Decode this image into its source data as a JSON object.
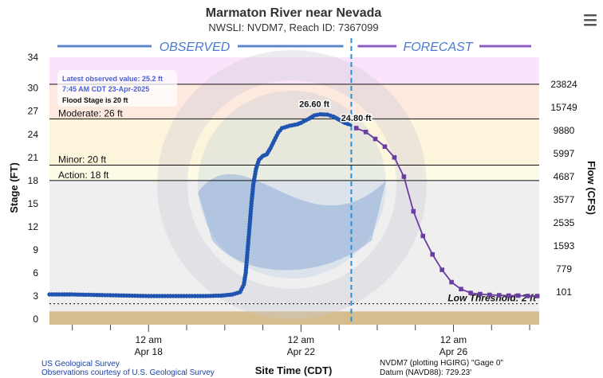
{
  "menu_icon": "hamburger-menu-icon",
  "watermark_icon": "noaa-official-forecast-watermark",
  "colors": {
    "observed": "#1f55b0",
    "forecast": "#6a3da0",
    "current_line": "#2b8fd6",
    "major_band": "#fbe3fb",
    "moderate_band": "#fde9dd",
    "minor_band": "#fdf4dc",
    "action_band": "#fdfbe6",
    "normal_band": "#efefef",
    "ground": "#d6bd8e"
  },
  "chart_data": {
    "type": "line",
    "title": "Marmaton River near Nevada",
    "subtitle": "NWSLI: NVDM7, Reach ID: 7367099",
    "ylabel": "Stage (FT)",
    "y2label": "Flow (CFS)",
    "xlabel": "Site Time (CDT)",
    "ylim": [
      0,
      34
    ],
    "yticks": [
      0,
      3,
      6,
      9,
      12,
      15,
      18,
      21,
      24,
      27,
      30,
      34
    ],
    "flow_ticks": [
      {
        "stage": 30.5,
        "label": "23824"
      },
      {
        "stage": 27.5,
        "label": "15749"
      },
      {
        "stage": 24.5,
        "label": "9880"
      },
      {
        "stage": 21.5,
        "label": "5997"
      },
      {
        "stage": 18.5,
        "label": "4687"
      },
      {
        "stage": 15.5,
        "label": "3577"
      },
      {
        "stage": 12.5,
        "label": "2535"
      },
      {
        "stage": 9.5,
        "label": "1593"
      },
      {
        "stage": 6.5,
        "label": "779"
      },
      {
        "stage": 3.5,
        "label": "101"
      }
    ],
    "xlim": [
      -2.6,
      10.25
    ],
    "x_unit": "days since Apr 18 12 am",
    "x_major_ticks": [
      {
        "day": 0,
        "line1": "12 am",
        "line2": "Apr 18"
      },
      {
        "day": 4,
        "line1": "12 am",
        "line2": "Apr 22"
      },
      {
        "day": 8,
        "line1": "12 am",
        "line2": "Apr 26"
      }
    ],
    "x_minor_ticks": [
      -2,
      -1,
      1,
      2,
      3,
      5,
      6,
      7,
      9,
      10
    ],
    "observed_label": "OBSERVED",
    "forecast_label": "FORECAST",
    "current_time_day": 5.32,
    "thresholds": [
      {
        "name": "major",
        "stage": 30.5,
        "label": ""
      },
      {
        "name": "moderate",
        "stage": 26,
        "label": "Moderate: 26 ft"
      },
      {
        "name": "minor",
        "stage": 20,
        "label": "Minor: 20 ft"
      },
      {
        "name": "action",
        "stage": 18,
        "label": "Action: 18 ft"
      },
      {
        "name": "low",
        "stage": 2,
        "label": "Low Threshold: 2 ft"
      }
    ],
    "flood_stage_ft": 20,
    "observed_box": {
      "line1": "Latest observed value: 25.2 ft",
      "line2": "7:45 AM CDT 23-Apr-2025",
      "line3": "Flood Stage is 20 ft"
    },
    "annotations": [
      {
        "text": "26.60 ft",
        "day": 4.35,
        "stage": 26.6
      },
      {
        "text": "24.80 ft",
        "day": 5.45,
        "stage": 24.8
      }
    ],
    "series": [
      {
        "name": "Observed",
        "points": [
          [
            -2.6,
            3.2
          ],
          [
            -2.0,
            3.2
          ],
          [
            -1.5,
            3.15
          ],
          [
            -1.0,
            3.1
          ],
          [
            -0.5,
            3.05
          ],
          [
            0.0,
            3.0
          ],
          [
            0.5,
            3.0
          ],
          [
            1.0,
            3.0
          ],
          [
            1.5,
            3.0
          ],
          [
            1.9,
            3.05
          ],
          [
            2.2,
            3.2
          ],
          [
            2.4,
            3.5
          ],
          [
            2.5,
            4.5
          ],
          [
            2.55,
            6.0
          ],
          [
            2.6,
            9.0
          ],
          [
            2.65,
            12.0
          ],
          [
            2.7,
            15.0
          ],
          [
            2.75,
            17.5
          ],
          [
            2.82,
            19.5
          ],
          [
            2.9,
            20.7
          ],
          [
            3.0,
            21.2
          ],
          [
            3.1,
            21.4
          ],
          [
            3.2,
            22.2
          ],
          [
            3.3,
            23.2
          ],
          [
            3.4,
            24.2
          ],
          [
            3.5,
            24.8
          ],
          [
            3.7,
            25.1
          ],
          [
            3.9,
            25.3
          ],
          [
            4.0,
            25.5
          ],
          [
            4.2,
            26.0
          ],
          [
            4.35,
            26.45
          ],
          [
            4.5,
            26.6
          ],
          [
            4.7,
            26.55
          ],
          [
            4.85,
            26.3
          ],
          [
            5.0,
            25.9
          ],
          [
            5.15,
            25.5
          ],
          [
            5.3,
            25.2
          ]
        ]
      },
      {
        "name": "Forecast",
        "points": [
          [
            5.45,
            24.8
          ],
          [
            5.7,
            24.3
          ],
          [
            5.95,
            23.4
          ],
          [
            6.2,
            22.4
          ],
          [
            6.45,
            21.0
          ],
          [
            6.7,
            18.5
          ],
          [
            6.95,
            14.0
          ],
          [
            7.2,
            10.8
          ],
          [
            7.45,
            8.4
          ],
          [
            7.7,
            6.4
          ],
          [
            7.95,
            4.8
          ],
          [
            8.2,
            3.9
          ],
          [
            8.45,
            3.4
          ],
          [
            8.7,
            3.25
          ],
          [
            8.95,
            3.15
          ],
          [
            9.2,
            3.1
          ],
          [
            9.45,
            3.05
          ],
          [
            9.7,
            3.05
          ],
          [
            9.95,
            3.0
          ],
          [
            10.2,
            3.0
          ]
        ]
      }
    ]
  },
  "credits": {
    "line1": "US Geological Survey",
    "line2": "Observations courtesy of U.S. Geological Survey"
  },
  "datum": {
    "line1": "NVDM7 (plotting HGIRG) \"Gage 0\"",
    "line2": "Datum (NAVD88): 729.23'"
  }
}
